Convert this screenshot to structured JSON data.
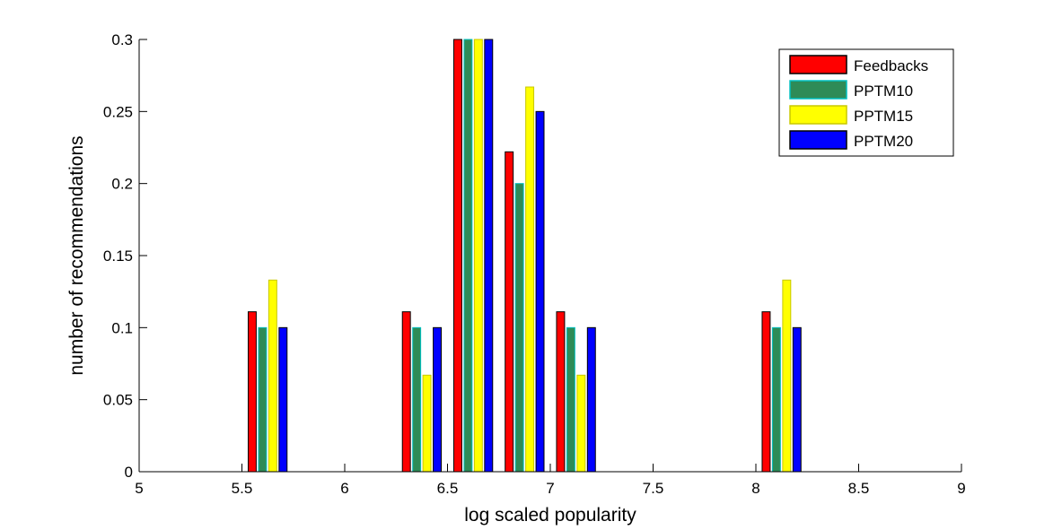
{
  "chart_data": {
    "type": "bar",
    "title": "",
    "xlabel": "log scaled popularity",
    "ylabel": "number of recommendations",
    "xlim": [
      5,
      9
    ],
    "ylim": [
      0,
      0.3
    ],
    "x_ticks": [
      "5",
      "5.5",
      "6",
      "6.5",
      "7",
      "7.5",
      "8",
      "8.5",
      "9"
    ],
    "y_ticks": [
      "0",
      "0.05",
      "0.1",
      "0.15",
      "0.2",
      "0.25",
      "0.3"
    ],
    "x": [
      5.125,
      5.375,
      5.625,
      5.875,
      6.125,
      6.375,
      6.625,
      6.875,
      7.125,
      7.375,
      7.625,
      7.875,
      8.125,
      8.375,
      8.625,
      8.875
    ],
    "grid": false,
    "legend_position": "top-right",
    "series": [
      {
        "name": "Feedbacks",
        "color": "#ff0000",
        "edge": "#000000",
        "values": [
          0,
          0,
          0.111,
          0,
          0,
          0.111,
          0.3,
          0.222,
          0.111,
          0,
          0,
          0,
          0.111,
          0,
          0,
          0
        ]
      },
      {
        "name": "PPTM10",
        "color": "#2e8b57",
        "edge": "#00c0c0",
        "values": [
          0,
          0,
          0.1,
          0,
          0,
          0.1,
          0.3,
          0.2,
          0.1,
          0,
          0,
          0,
          0.1,
          0,
          0,
          0
        ]
      },
      {
        "name": "PPTM15",
        "color": "#ffff00",
        "edge": "#c8c800",
        "values": [
          0,
          0,
          0.133,
          0,
          0,
          0.067,
          0.3,
          0.267,
          0.067,
          0,
          0,
          0,
          0.133,
          0,
          0,
          0
        ]
      },
      {
        "name": "PPTM20",
        "color": "#0000ff",
        "edge": "#000000",
        "values": [
          0,
          0,
          0.1,
          0,
          0,
          0.1,
          0.3,
          0.25,
          0.1,
          0,
          0,
          0,
          0.1,
          0,
          0,
          0
        ]
      }
    ]
  }
}
